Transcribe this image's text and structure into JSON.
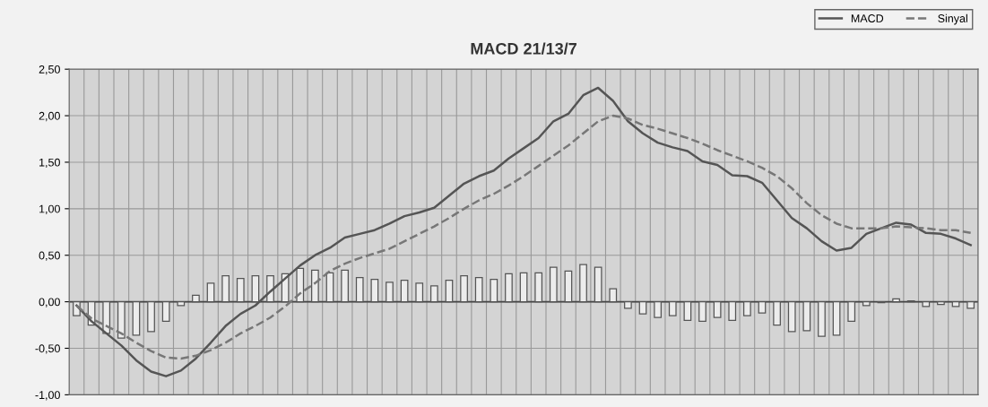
{
  "chart_data": {
    "type": "line",
    "title": "MACD 21/13/7",
    "categories": [
      null,
      null,
      null,
      null,
      null,
      null,
      null,
      null,
      null,
      null,
      null,
      null,
      null,
      null,
      null,
      null,
      null,
      null,
      null,
      null,
      null,
      null,
      null,
      null,
      null,
      null,
      null,
      null,
      null,
      null,
      null,
      null,
      null,
      null,
      null,
      null,
      null,
      null,
      null,
      null,
      null,
      null,
      null,
      null,
      null,
      null,
      null,
      null,
      null,
      null,
      null,
      null,
      null,
      null,
      null,
      null,
      null,
      null,
      null,
      null,
      null
    ],
    "series": [
      {
        "type": "bar",
        "color": "#555555",
        "values": [
          -0.15,
          -0.25,
          -0.34,
          -0.39,
          -0.36,
          -0.32,
          -0.21,
          -0.04,
          0.07,
          0.2,
          0.28,
          0.25,
          0.28,
          0.28,
          0.3,
          0.36,
          0.34,
          0.31,
          0.34,
          0.26,
          0.24,
          0.21,
          0.23,
          0.2,
          0.17,
          0.23,
          0.28,
          0.26,
          0.24,
          0.3,
          0.31,
          0.31,
          0.37,
          0.33,
          0.4,
          0.37,
          0.14,
          -0.07,
          -0.13,
          -0.17,
          -0.15,
          -0.2,
          -0.21,
          -0.17,
          -0.2,
          -0.15,
          -0.12,
          -0.25,
          -0.32,
          -0.31,
          -0.37,
          -0.36,
          -0.21,
          -0.04,
          -0.01,
          0.03,
          0.01,
          -0.05,
          -0.03,
          -0.05,
          -0.07
        ]
      },
      {
        "name": "MACD",
        "color": "#555555",
        "line_style": "solid",
        "values": [
          -0.04,
          -0.21,
          -0.34,
          -0.47,
          -0.63,
          -0.75,
          -0.8,
          -0.74,
          -0.61,
          -0.44,
          -0.26,
          -0.13,
          -0.04,
          0.11,
          0.25,
          0.39,
          0.5,
          0.58,
          0.69,
          0.73,
          0.77,
          0.84,
          0.92,
          0.96,
          1.01,
          1.14,
          1.27,
          1.35,
          1.41,
          1.54,
          1.65,
          1.76,
          1.94,
          2.02,
          2.22,
          2.3,
          2.16,
          1.94,
          1.81,
          1.71,
          1.66,
          1.62,
          1.51,
          1.47,
          1.36,
          1.35,
          1.28,
          1.09,
          0.9,
          0.79,
          0.65,
          0.55,
          0.58,
          0.73,
          0.79,
          0.85,
          0.83,
          0.74,
          0.73,
          0.68,
          0.61
        ]
      },
      {
        "name": "Sinyal",
        "color": "#777777",
        "line_style": "dashed",
        "values": [
          -0.04,
          -0.18,
          -0.26,
          -0.34,
          -0.44,
          -0.53,
          -0.6,
          -0.61,
          -0.58,
          -0.52,
          -0.44,
          -0.34,
          -0.26,
          -0.17,
          -0.05,
          0.09,
          0.2,
          0.33,
          0.41,
          0.47,
          0.52,
          0.57,
          0.65,
          0.73,
          0.81,
          0.9,
          1.0,
          1.09,
          1.16,
          1.25,
          1.35,
          1.46,
          1.57,
          1.68,
          1.81,
          1.94,
          2.0,
          1.97,
          1.9,
          1.86,
          1.81,
          1.76,
          1.7,
          1.63,
          1.57,
          1.51,
          1.44,
          1.35,
          1.22,
          1.06,
          0.93,
          0.84,
          0.79,
          0.79,
          0.79,
          0.81,
          0.8,
          0.79,
          0.77,
          0.77,
          0.74
        ]
      }
    ],
    "ylim": [
      -1.0,
      2.5
    ],
    "yticks": [
      {
        "value": -1.0,
        "label": "-1,00"
      },
      {
        "value": -0.5,
        "label": "-0,50"
      },
      {
        "value": 0.0,
        "label": "0,00"
      },
      {
        "value": 0.5,
        "label": "0,50"
      },
      {
        "value": 1.0,
        "label": "1,00"
      },
      {
        "value": 1.5,
        "label": "1,50"
      },
      {
        "value": 2.0,
        "label": "2,00"
      },
      {
        "value": 2.5,
        "label": "2,50"
      }
    ],
    "grid": true,
    "legend": "top right",
    "tick_labels": "y"
  }
}
